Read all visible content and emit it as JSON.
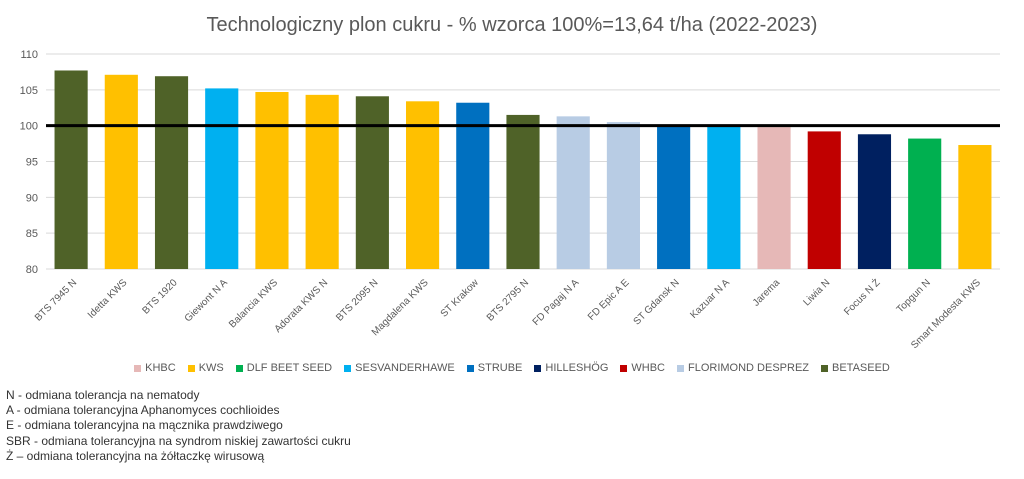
{
  "chart_data": {
    "type": "bar",
    "title": "Technologiczny plon cukru - % wzorca 100%=13,64 t/ha (2022-2023)",
    "ylim": [
      80,
      110
    ],
    "yticks": [
      80,
      85,
      90,
      95,
      100,
      105,
      110
    ],
    "reference_line": 100,
    "grid": true,
    "legend_position": "bottom",
    "categories": [
      "BTS 7945 N",
      "Idetta KWS",
      "BTS 1920",
      "Giewont N A",
      "Balancia KWS",
      "Adorata KWS N",
      "BTS 2095 N",
      "Magdalena KWS",
      "ST Krakow",
      "BTS 2795 N",
      "FD Pagaj N A",
      "FD Epic A E",
      "ST Gdansk N",
      "Kazuar N A",
      "Jarema",
      "Liwia N",
      "Focus N Ż",
      "Topgun N",
      "Smart Modesta KWS"
    ],
    "values": [
      107.7,
      107.1,
      106.9,
      105.2,
      104.7,
      104.3,
      104.1,
      103.4,
      103.2,
      101.5,
      101.3,
      100.5,
      100.1,
      99.9,
      99.8,
      99.2,
      98.8,
      98.2,
      97.3
    ],
    "breeders": [
      "BETASEED",
      "KWS",
      "BETASEED",
      "SESVANDERHAWE",
      "KWS",
      "KWS",
      "BETASEED",
      "KWS",
      "STRUBE",
      "BETASEED",
      "FLORIMOND DESPREZ",
      "FLORIMOND DESPREZ",
      "STRUBE",
      "SESVANDERHAWE",
      "KHBC",
      "WHBC",
      "HILLESHÖG",
      "DLF BEET SEED",
      "KWS"
    ],
    "legend": [
      {
        "name": "KHBC",
        "color": "#E6B8B7"
      },
      {
        "name": "KWS",
        "color": "#FFC000"
      },
      {
        "name": "DLF BEET SEED",
        "color": "#00B050"
      },
      {
        "name": "SESVANDERHAWE",
        "color": "#00B0F0"
      },
      {
        "name": "STRUBE",
        "color": "#0070C0"
      },
      {
        "name": "HILLESHÖG",
        "color": "#002060"
      },
      {
        "name": "WHBC",
        "color": "#C00000"
      },
      {
        "name": "FLORIMOND DESPREZ",
        "color": "#B8CCE4"
      },
      {
        "name": "BETASEED",
        "color": "#4F6228"
      }
    ]
  },
  "notes": [
    "N - odmiana tolerancja na nematody",
    "A - odmiana tolerancyjna Aphanomyces cochlioides",
    "E - odmiana tolerancyjna na mącznika prawdziwego",
    "SBR - odmiana tolerancyjna na syndrom niskiej zawartości cukru",
    "Ż – odmiana tolerancyjna na żółtaczkę wirusową"
  ]
}
